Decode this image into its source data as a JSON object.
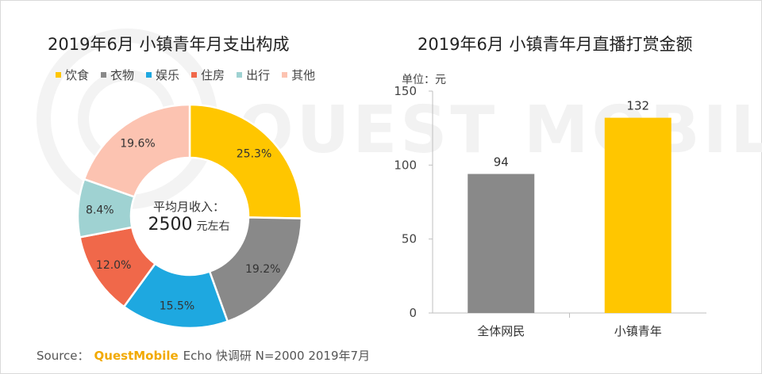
{
  "left": {
    "title": "2019年6月 小镇青年月支出构成",
    "center_line1": "平均月收入：",
    "center_value": "2500",
    "center_unit": "元左右"
  },
  "right": {
    "title": "2019年6月 小镇青年月直播打赏金额",
    "unit_label": "单位：元"
  },
  "watermark_text": "QUESTMOBILE",
  "source": {
    "prefix": "Source：",
    "brand": "QuestMobile",
    "rest": "Echo 快调研 N=2000 2019年7月"
  },
  "chart_data": [
    {
      "type": "pie",
      "variant": "donut",
      "title": "2019年6月 小镇青年月支出构成",
      "legend_position": "top-left",
      "slices": [
        {
          "label": "饮食",
          "value": 25.3,
          "value_label": "25.3%",
          "color": "#ffc600"
        },
        {
          "label": "衣物",
          "value": 19.2,
          "value_label": "19.2%",
          "color": "#898989"
        },
        {
          "label": "娱乐",
          "value": 15.5,
          "value_label": "15.5%",
          "color": "#1ea8e0"
        },
        {
          "label": "住房",
          "value": 12.0,
          "value_label": "12.0%",
          "color": "#f0684a"
        },
        {
          "label": "出行",
          "value": 8.4,
          "value_label": "8.4%",
          "color": "#9fd2d2"
        },
        {
          "label": "其他",
          "value": 19.6,
          "value_label": "19.6%",
          "color": "#fcc3b1"
        }
      ]
    },
    {
      "type": "bar",
      "title": "2019年6月 小镇青年月直播打赏金额",
      "categories": [
        "全体网民",
        "小镇青年"
      ],
      "values": [
        94,
        132
      ],
      "value_labels": [
        "94",
        "132"
      ],
      "colors": [
        "#898989",
        "#ffc600"
      ],
      "ylim": [
        0,
        150
      ],
      "yticks": [
        0,
        50,
        100,
        150
      ],
      "ylabel": "单位：元",
      "grid": false
    }
  ]
}
